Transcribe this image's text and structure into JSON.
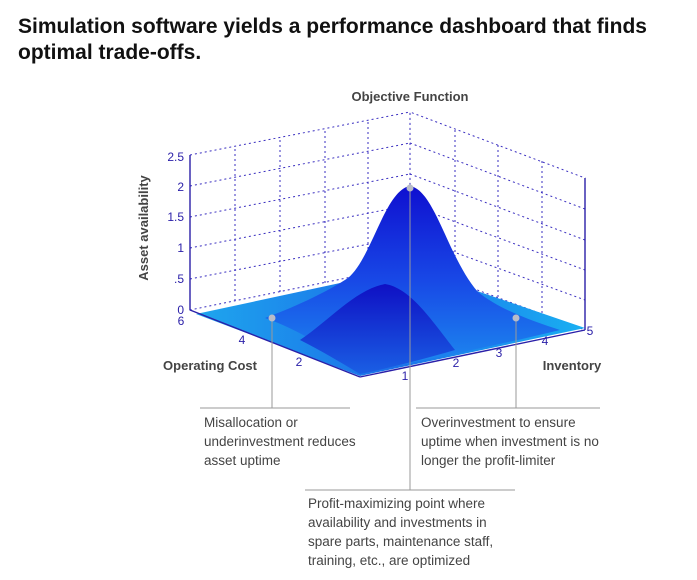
{
  "headline": "Simulation software yields a performance dashboard that finds optimal trade-offs.",
  "chart_data": {
    "type": "surface",
    "title": "Objective Function",
    "zlabel": "Asset availability",
    "xlabel": "Operating Cost",
    "ylabel": "Inventory",
    "z_ticks": [
      "0",
      ".5",
      "1",
      "1.5",
      "2",
      "2.5"
    ],
    "x_ticks": [
      "6",
      "4",
      "2"
    ],
    "y_ticks": [
      "1",
      "2",
      "3",
      "4",
      "5"
    ],
    "zlim": [
      0,
      2.5
    ],
    "peak_value": 2.0,
    "colors": {
      "surface_light": "#1aa8f0",
      "surface_dark": "#1212c8",
      "axis": "#2a1fa8",
      "grid": "#3a2fc0"
    }
  },
  "captions": {
    "left": "Misallocation or underinvestment reduces asset uptime",
    "right": "Overinvestment to ensure uptime when investment is no longer the profit-limiter",
    "middle": "Profit-maximizing point where availability and investments in spare parts, maintenance staff, training, etc., are optimized"
  }
}
